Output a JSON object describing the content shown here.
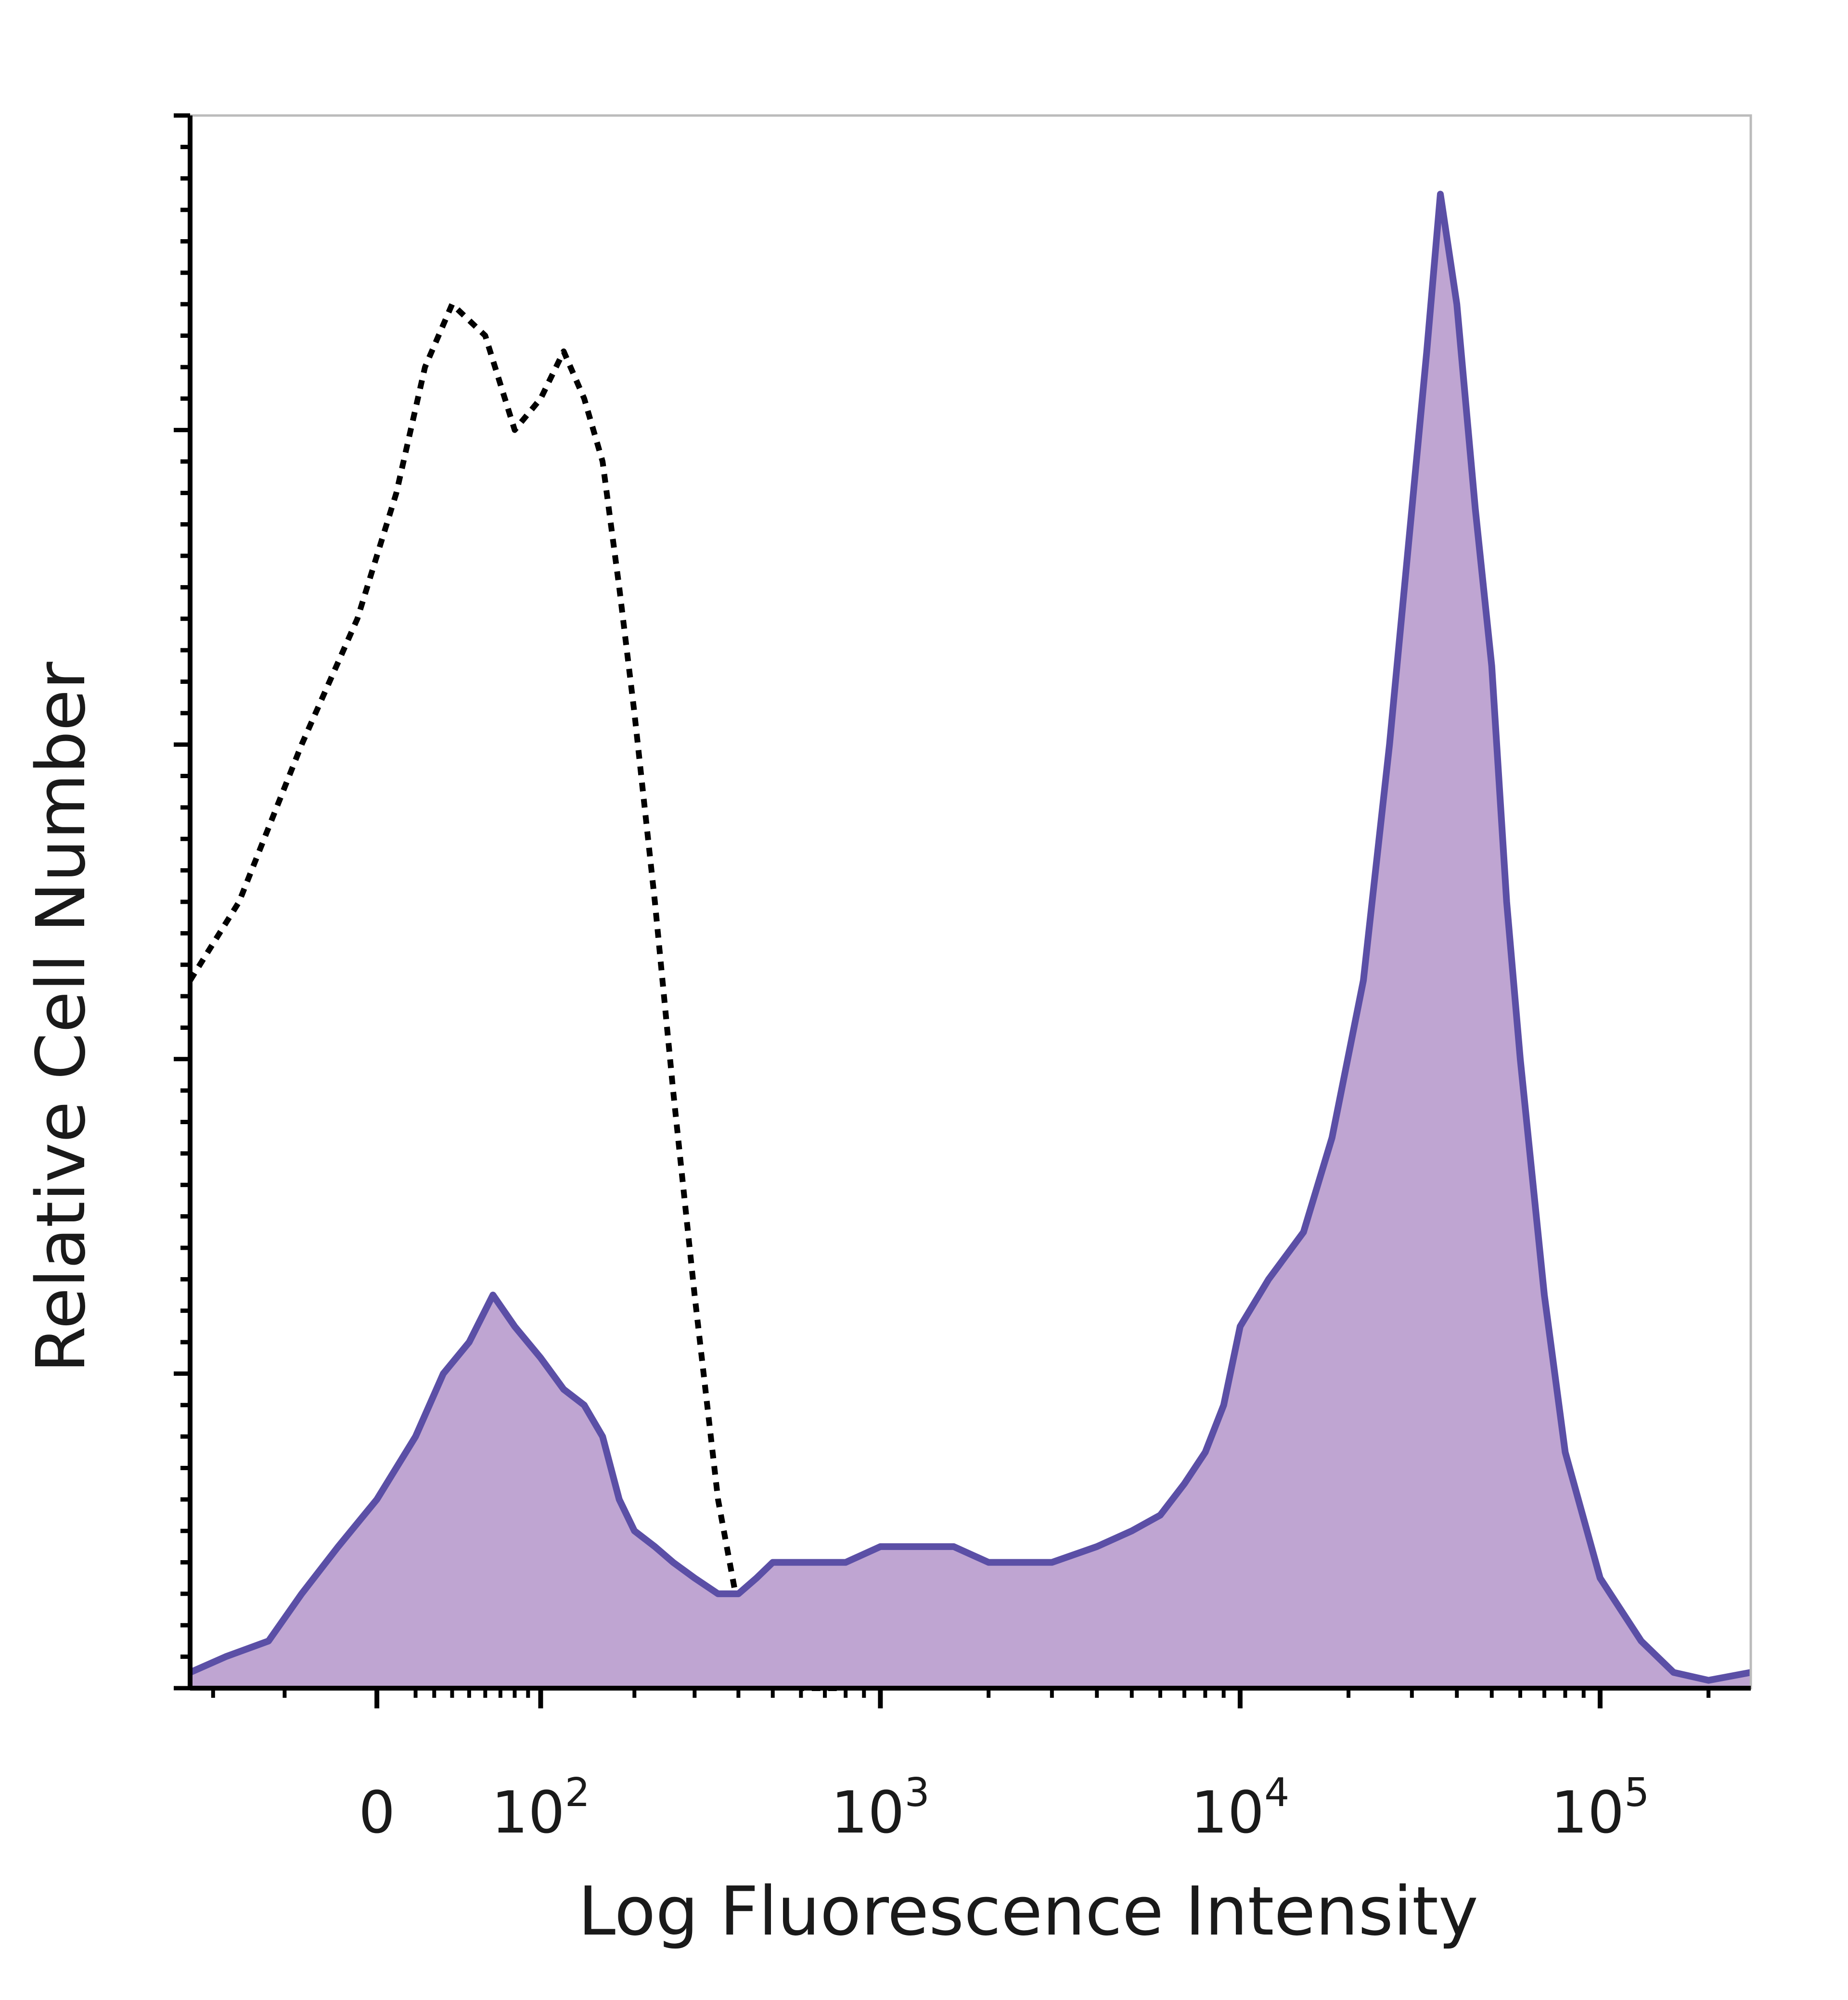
{
  "chart_data": {
    "type": "area",
    "title": "",
    "xlabel": "Log Fluorescence Intensity",
    "ylabel": "Relative Cell Number",
    "x_scale": "biexponential",
    "xlim": [
      -120,
      262144
    ],
    "ylim": [
      0,
      100
    ],
    "x_tick_labels": [
      {
        "value": 0,
        "base": "0",
        "exp": ""
      },
      {
        "value": 100,
        "base": "10",
        "exp": "2"
      },
      {
        "value": 1000,
        "base": "10",
        "exp": "3"
      },
      {
        "value": 10000,
        "base": "10",
        "exp": "4"
      },
      {
        "value": 100000,
        "base": "10",
        "exp": "5"
      }
    ],
    "grid": false,
    "legend": "none",
    "colors": {
      "stained_line": "#5b4fa6",
      "stained_fill": "#bfa5d2",
      "control_line": "#000000",
      "axis": "#000000",
      "frame": "#bbbbbb"
    },
    "series": [
      {
        "style": "dotted-black",
        "x": [
          -120,
          -80,
          -40,
          -10,
          10,
          25,
          40,
          60,
          80,
          100,
          120,
          140,
          160,
          180,
          200,
          230,
          260,
          300,
          350,
          400,
          450,
          500,
          550,
          600,
          800
        ],
        "y": [
          45,
          50,
          60,
          68,
          76,
          84,
          88,
          86,
          80,
          82,
          85,
          82,
          78,
          70,
          62,
          50,
          38,
          25,
          12,
          5,
          2,
          1,
          0.5,
          0,
          0
        ]
      },
      {
        "style": "filled-purple",
        "x": [
          -120,
          -90,
          -60,
          -40,
          -20,
          0,
          20,
          35,
          50,
          65,
          80,
          100,
          120,
          140,
          160,
          180,
          200,
          230,
          260,
          300,
          350,
          400,
          450,
          500,
          600,
          700,
          800,
          1000,
          1300,
          1600,
          2000,
          2500,
          3000,
          4000,
          5000,
          6000,
          7000,
          8000,
          9000,
          10000,
          12000,
          15000,
          18000,
          22000,
          26000,
          30000,
          33000,
          36000,
          40000,
          45000,
          50000,
          55000,
          60000,
          70000,
          80000,
          100000,
          130000,
          160000,
          200000,
          262144
        ],
        "y": [
          1,
          2,
          3,
          6,
          9,
          12,
          16,
          20,
          22,
          25,
          23,
          21,
          19,
          18,
          16,
          12,
          10,
          9,
          8,
          7,
          6,
          6,
          7,
          8,
          8,
          8,
          8,
          9,
          9,
          9,
          8,
          8,
          8,
          9,
          10,
          11,
          13,
          15,
          18,
          23,
          26,
          29,
          35,
          45,
          60,
          75,
          85,
          95,
          88,
          75,
          65,
          50,
          40,
          25,
          15,
          7,
          3,
          1,
          0.5,
          1
        ]
      }
    ]
  }
}
